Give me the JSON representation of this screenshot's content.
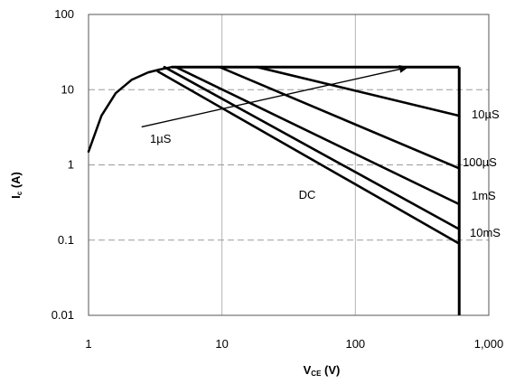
{
  "chart_data": {
    "type": "line",
    "x_scale": "log",
    "y_scale": "log",
    "xlim": [
      1,
      1000
    ],
    "ylim": [
      0.01,
      100
    ],
    "x_ticks": [
      "1",
      "10",
      "100",
      "1,000"
    ],
    "y_ticks": [
      "100",
      "10",
      "1",
      "0.1",
      "0.01"
    ],
    "xlabel": {
      "main": "V",
      "sub": "CE",
      "unit": " (V)"
    },
    "ylabel": {
      "main": "I",
      "sub": "c",
      "unit": " (A)"
    },
    "grid": true,
    "soa_limits": {
      "ic_max": 20,
      "vce_max": 600
    },
    "series": [
      {
        "name": "10µS",
        "points": [
          [
            18.3,
            20
          ],
          [
            600,
            4.5
          ]
        ]
      },
      {
        "name": "100µS",
        "points": [
          [
            9.6,
            20
          ],
          [
            600,
            0.9
          ]
        ]
      },
      {
        "name": "1mS",
        "points": [
          [
            4.5,
            20
          ],
          [
            600,
            0.3
          ]
        ]
      },
      {
        "name": "10mS",
        "points": [
          [
            3.7,
            20
          ],
          [
            600,
            0.14
          ]
        ]
      },
      {
        "name": "DC",
        "points": [
          [
            3.3,
            17.5
          ],
          [
            600,
            0.09
          ]
        ]
      },
      {
        "name": "",
        "points": [
          [
            1.0,
            1.5
          ],
          [
            1.25,
            4.5
          ],
          [
            1.6,
            9.0
          ],
          [
            2.1,
            13.5
          ],
          [
            2.8,
            17.0
          ],
          [
            3.4,
            18.5
          ],
          [
            4.2,
            20
          ]
        ]
      }
    ],
    "annotations": {
      "pulse_label": "1µS",
      "dc_label": "DC",
      "arrow": {
        "from": [
          2.5,
          3.2
        ],
        "to": [
          250,
          20
        ]
      }
    }
  }
}
